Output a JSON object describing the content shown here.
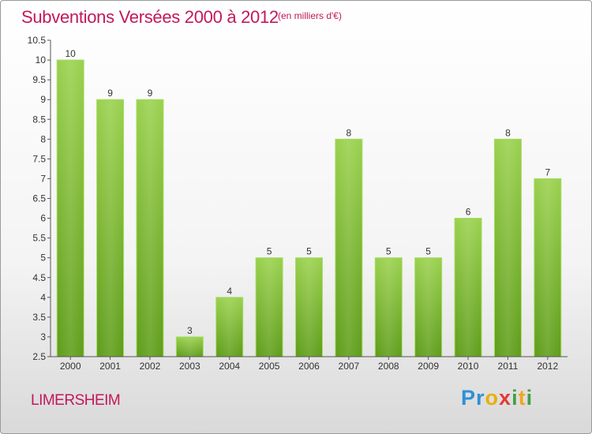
{
  "header": {
    "title": "Subventions Versées 2000 à 2012",
    "subtitle": "(en milliers d'€)"
  },
  "footer": {
    "commune": "LIMERSHEIM",
    "logo_letters": [
      {
        "ch": "P",
        "color": "#2f8fd8"
      },
      {
        "ch": "r",
        "color": "#2f8fd8"
      },
      {
        "ch": "o",
        "color": "#e8b00a"
      },
      {
        "ch": "x",
        "color": "#e53935"
      },
      {
        "ch": "i",
        "color": "#43a047"
      },
      {
        "ch": "t",
        "color": "#f4a41c"
      },
      {
        "ch": "i",
        "color": "#43a047"
      }
    ]
  },
  "chart_data": {
    "type": "bar",
    "title": "Subventions Versées 2000 à 2012",
    "subtitle": "(en milliers d'€)",
    "categories": [
      "2000",
      "2001",
      "2002",
      "2003",
      "2004",
      "2005",
      "2006",
      "2007",
      "2008",
      "2009",
      "2010",
      "2011",
      "2012"
    ],
    "values": [
      10,
      9,
      9,
      3,
      4,
      5,
      5,
      8,
      5,
      5,
      6,
      8,
      7
    ],
    "value_labels": [
      "10",
      "9",
      "9",
      "3",
      "4",
      "5",
      "5",
      "8",
      "5",
      "5",
      "6",
      "8",
      "7"
    ],
    "ylim": [
      2.5,
      10.5
    ],
    "yticks": [
      "2.5",
      "3",
      "3.5",
      "4",
      "4.5",
      "5",
      "5.5",
      "6",
      "6.5",
      "7",
      "7.5",
      "8",
      "8.5",
      "9",
      "9.5",
      "10",
      "10.5"
    ],
    "grid": false,
    "bar_color": "#7cc03a"
  }
}
